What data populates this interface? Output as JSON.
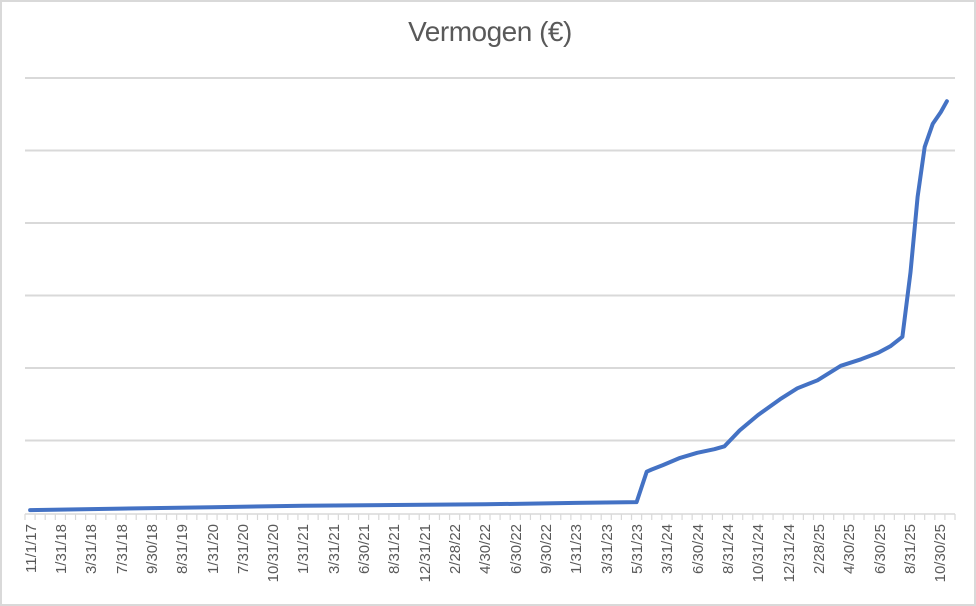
{
  "chart_data": {
    "type": "line",
    "title": "Vermogen (€)",
    "xlabel": "",
    "ylabel": "",
    "legend": "none",
    "grid": "horizontal",
    "y_axis_labels_visible": false,
    "y_values_unit": "gridline-units (y axis is unlabeled; 1.0 = one gridline spacing above the x axis)",
    "ylim": [
      0,
      6.2
    ],
    "gridlines_at": [
      1,
      2,
      3,
      4,
      5,
      6
    ],
    "num_categories": 92,
    "x_tick_label_every": 3,
    "x_tick_labels": [
      "11/1/17",
      "1/31/18",
      "3/31/18",
      "7/31/18",
      "9/30/18",
      "8/31/19",
      "1/31/20",
      "7/31/20",
      "10/31/20",
      "1/31/21",
      "3/31/21",
      "6/30/21",
      "8/31/21",
      "12/31/21",
      "2/28/22",
      "4/30/22",
      "6/30/22",
      "9/30/22",
      "1/31/23",
      "3/31/23",
      "5/31/23",
      "3/31/24",
      "6/30/24",
      "8/31/24",
      "10/31/24",
      "12/31/24",
      "2/28/25",
      "4/30/25",
      "6/30/25",
      "8/31/25",
      "10/30/25"
    ],
    "series": [
      {
        "name": "Vermogen (€)",
        "color": "#4472C4",
        "points_index_value": [
          [
            0,
            0.04
          ],
          [
            9,
            0.06
          ],
          [
            18,
            0.08
          ],
          [
            27,
            0.1
          ],
          [
            36,
            0.11
          ],
          [
            45,
            0.12
          ],
          [
            54,
            0.14
          ],
          [
            60,
            0.15
          ],
          [
            61,
            0.57
          ],
          [
            61.5,
            0.6
          ],
          [
            62.6,
            0.66
          ],
          [
            64.3,
            0.76
          ],
          [
            66,
            0.83
          ],
          [
            67.7,
            0.88
          ],
          [
            68.7,
            0.92
          ],
          [
            70.2,
            1.14
          ],
          [
            72,
            1.35
          ],
          [
            74.2,
            1.57
          ],
          [
            75.9,
            1.72
          ],
          [
            77.9,
            1.83
          ],
          [
            80.2,
            2.03
          ],
          [
            82.2,
            2.12
          ],
          [
            83.9,
            2.21
          ],
          [
            85.1,
            2.3
          ],
          [
            86.3,
            2.43
          ],
          [
            87.1,
            3.32
          ],
          [
            87.8,
            4.36
          ],
          [
            88.5,
            5.05
          ],
          [
            89.3,
            5.37
          ],
          [
            90.1,
            5.53
          ],
          [
            90.7,
            5.68
          ]
        ]
      }
    ]
  },
  "colors": {
    "line": "#4472C4",
    "gridline": "#D9D9D9",
    "axis": "#D9D9D9",
    "text": "#595959",
    "border": "#D9D9D9",
    "background": "#FFFFFF"
  }
}
